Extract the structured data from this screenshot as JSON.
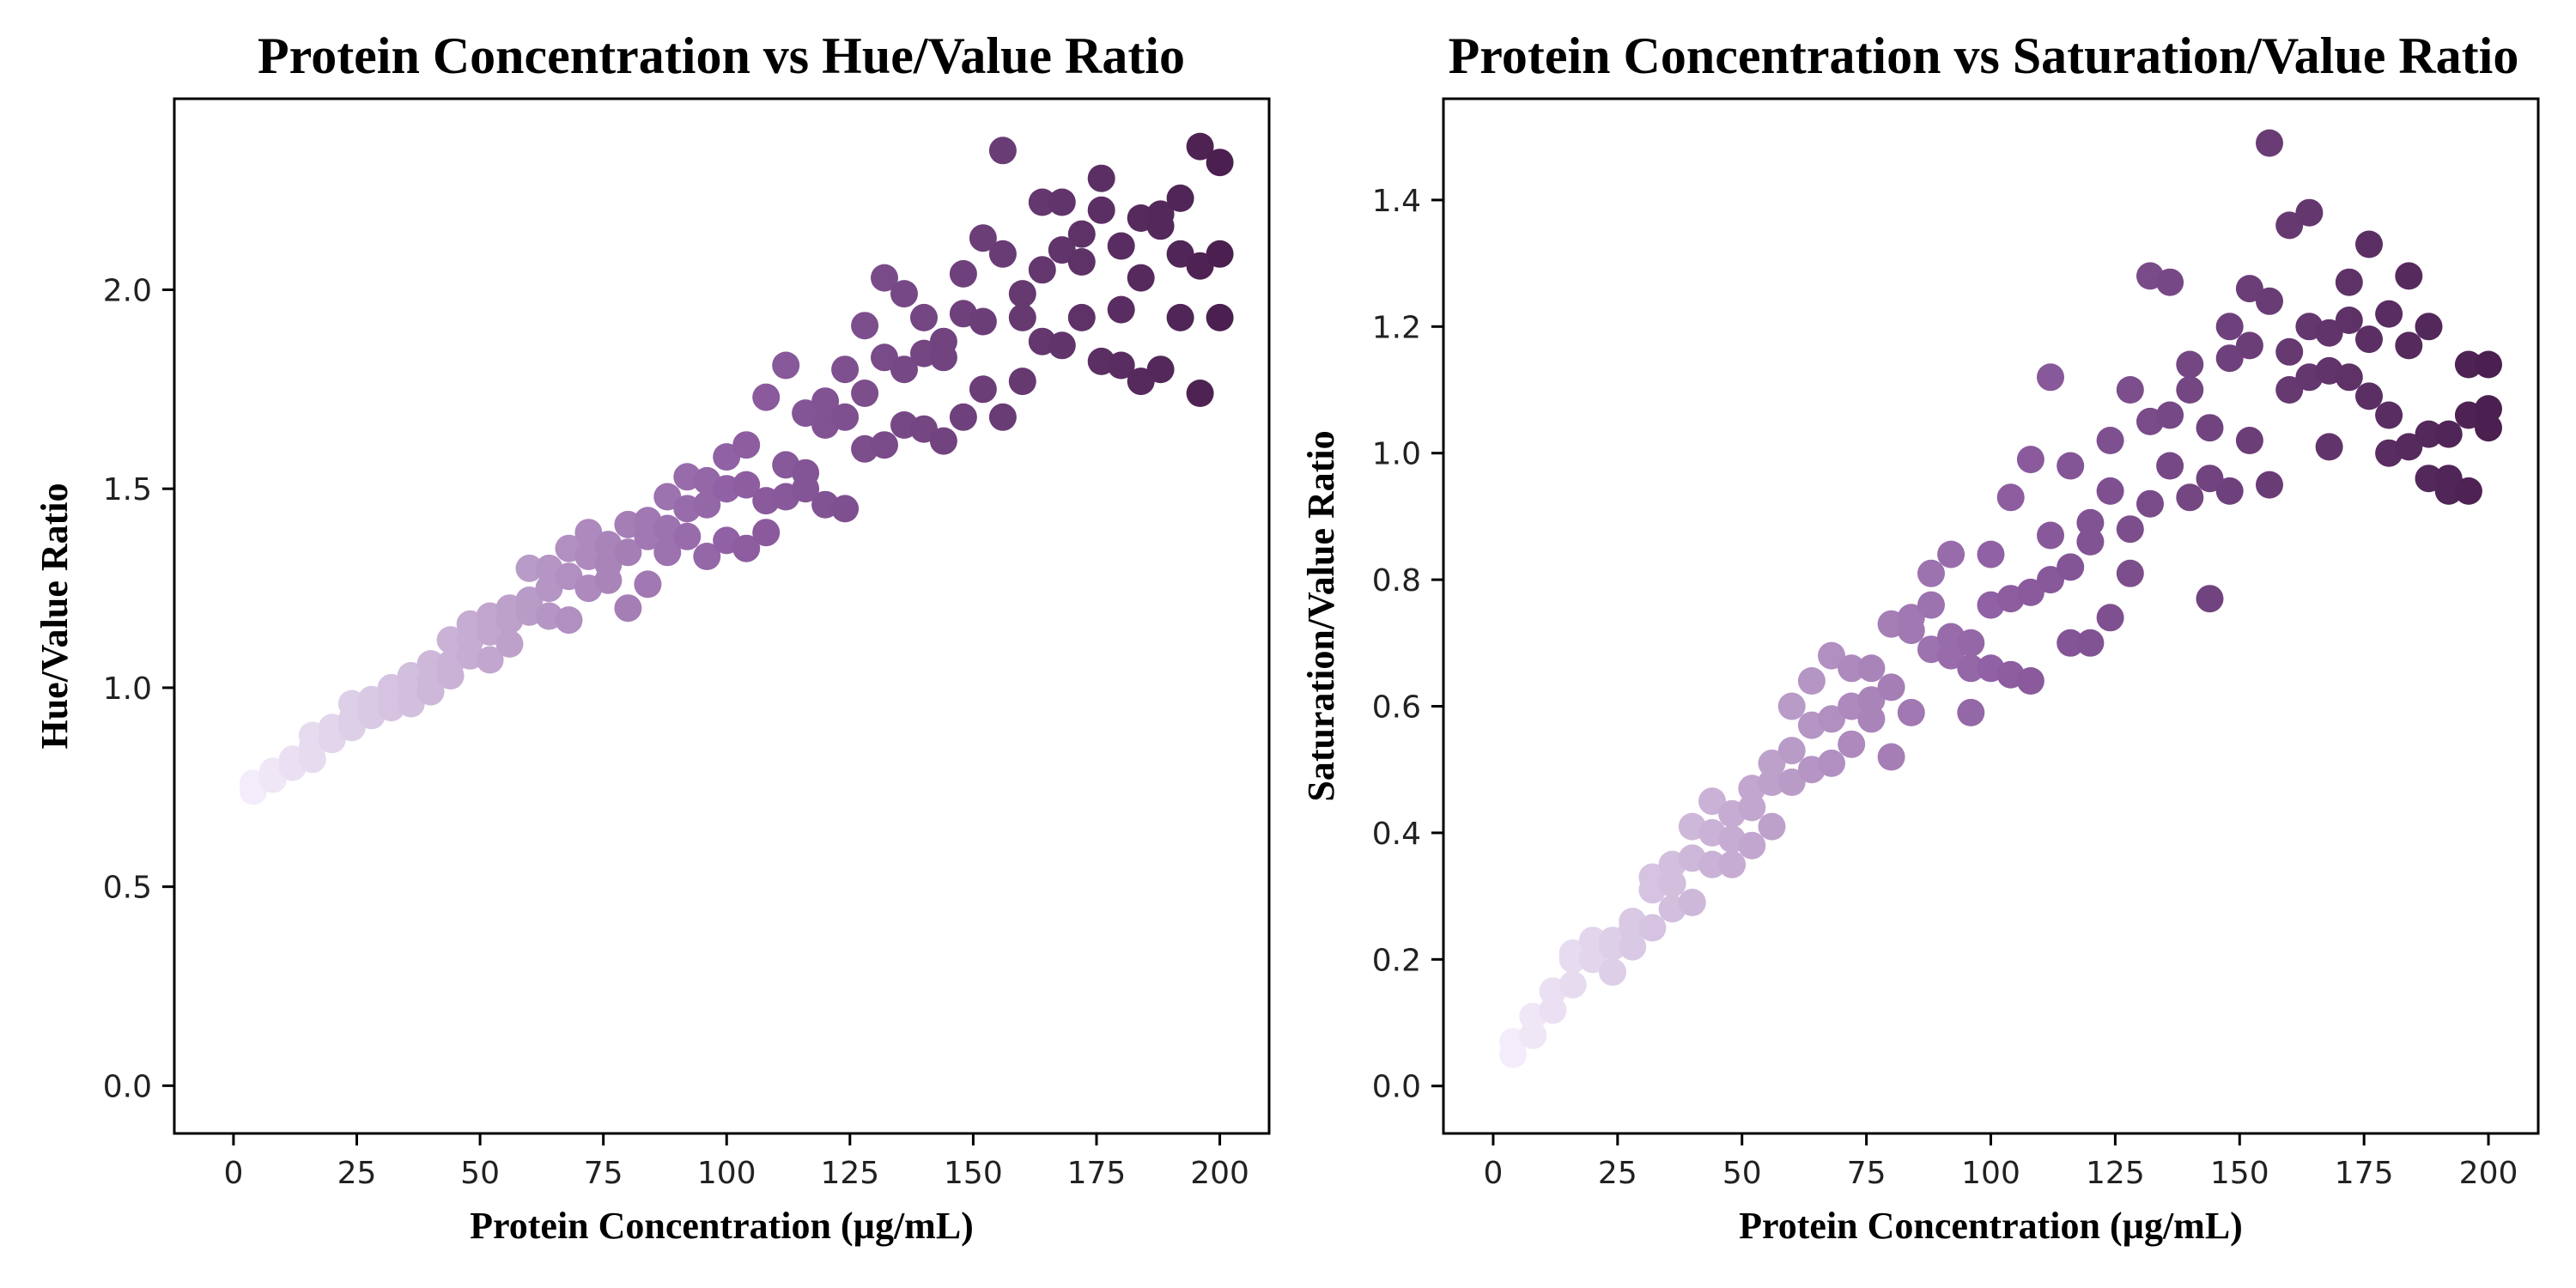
{
  "chart_data": [
    {
      "type": "scatter",
      "title": "Protein Concentration vs Hue/Value Ratio",
      "xlabel": "Protein Concentration (µg/mL)",
      "ylabel": "Hue/Value Ratio",
      "xlim": [
        -12,
        210
      ],
      "ylim": [
        -0.12,
        2.48
      ],
      "xticks": [
        0,
        25,
        50,
        75,
        100,
        125,
        150,
        175,
        200
      ],
      "xtick_labels": [
        "0",
        "25",
        "50",
        "75",
        "100",
        "125",
        "150",
        "175",
        "200"
      ],
      "yticks": [
        0.0,
        0.5,
        1.0,
        1.5,
        2.0
      ],
      "ytick_labels": [
        "0.0",
        "0.5",
        "1.0",
        "1.5",
        "2.0"
      ],
      "grid": false,
      "colormap": {
        "low": "#f3ecfa",
        "mid": "#8e5ea2",
        "high": "#4b2050"
      },
      "color_by": "x",
      "x": [
        4,
        4,
        8,
        8,
        12,
        12,
        16,
        16,
        16,
        20,
        20,
        24,
        24,
        24,
        28,
        28,
        28,
        32,
        32,
        32,
        36,
        36,
        36,
        40,
        40,
        40,
        44,
        44,
        44,
        48,
        48,
        48,
        52,
        52,
        52,
        56,
        56,
        56,
        60,
        60,
        60,
        64,
        64,
        64,
        68,
        68,
        68,
        72,
        72,
        72,
        76,
        76,
        76,
        80,
        80,
        80,
        84,
        84,
        84,
        88,
        88,
        88,
        92,
        92,
        92,
        96,
        96,
        96,
        100,
        100,
        100,
        104,
        104,
        104,
        108,
        108,
        108,
        112,
        112,
        112,
        116,
        116,
        116,
        120,
        120,
        120,
        124,
        124,
        124,
        128,
        128,
        128,
        132,
        132,
        132,
        136,
        136,
        136,
        140,
        140,
        140,
        144,
        144,
        144,
        148,
        148,
        148,
        152,
        152,
        152,
        156,
        156,
        156,
        160,
        160,
        160,
        164,
        164,
        164,
        168,
        168,
        168,
        172,
        172,
        172,
        176,
        176,
        176,
        180,
        180,
        180,
        184,
        184,
        184,
        188,
        188,
        188,
        192,
        192,
        192,
        196,
        196,
        196,
        200,
        200,
        200
      ],
      "y": [
        0.74,
        0.76,
        0.77,
        0.79,
        0.8,
        0.82,
        0.82,
        0.85,
        0.88,
        0.87,
        0.9,
        0.9,
        0.92,
        0.96,
        0.93,
        0.95,
        0.97,
        0.95,
        0.97,
        1.0,
        0.96,
        1.0,
        1.03,
        0.99,
        1.02,
        1.06,
        1.03,
        1.06,
        1.12,
        1.08,
        1.12,
        1.16,
        1.07,
        1.14,
        1.18,
        1.11,
        1.17,
        1.2,
        1.19,
        1.22,
        1.3,
        1.18,
        1.25,
        1.3,
        1.17,
        1.28,
        1.35,
        1.25,
        1.33,
        1.39,
        1.27,
        1.31,
        1.36,
        1.2,
        1.34,
        1.41,
        1.26,
        1.38,
        1.42,
        1.34,
        1.4,
        1.48,
        1.38,
        1.45,
        1.53,
        1.33,
        1.46,
        1.52,
        1.37,
        1.5,
        1.58,
        1.35,
        1.51,
        1.61,
        1.39,
        1.47,
        1.73,
        1.48,
        1.56,
        1.81,
        1.5,
        1.54,
        1.69,
        1.46,
        1.66,
        1.72,
        1.45,
        1.68,
        1.8,
        1.6,
        1.74,
        1.91,
        1.61,
        1.83,
        2.03,
        1.66,
        1.8,
        1.99,
        1.65,
        1.84,
        1.93,
        1.62,
        1.83,
        1.87,
        1.68,
        1.94,
        2.04,
        1.75,
        1.92,
        2.13,
        1.68,
        2.09,
        2.35,
        1.77,
        1.93,
        1.99,
        1.87,
        2.05,
        2.22,
        1.86,
        2.1,
        2.22,
        1.93,
        2.07,
        2.14,
        1.82,
        2.2,
        2.28,
        1.81,
        1.95,
        2.11,
        1.77,
        2.03,
        2.18,
        1.8,
        2.16,
        2.19,
        1.93,
        2.09,
        2.23,
        1.74,
        2.06,
        2.36,
        1.93,
        2.09,
        2.32
      ]
    },
    {
      "type": "scatter",
      "title": "Protein Concentration vs Saturation/Value Ratio",
      "xlabel": "Protein Concentration (µg/mL)",
      "ylabel": "Saturation/Value Ratio",
      "xlim": [
        -10,
        210
      ],
      "ylim": [
        -0.075,
        1.56
      ],
      "xticks": [
        0,
        25,
        50,
        75,
        100,
        125,
        150,
        175,
        200
      ],
      "xtick_labels": [
        "0",
        "25",
        "50",
        "75",
        "100",
        "125",
        "150",
        "175",
        "200"
      ],
      "yticks": [
        0.0,
        0.2,
        0.4,
        0.6,
        0.8,
        1.0,
        1.2,
        1.4
      ],
      "ytick_labels": [
        "0.0",
        "0.2",
        "0.4",
        "0.6",
        "0.8",
        "1.0",
        "1.2",
        "1.4"
      ],
      "grid": false,
      "colormap": {
        "low": "#f3ecfa",
        "mid": "#8e5ea2",
        "high": "#4b2050"
      },
      "color_by": "x",
      "x": [
        4,
        4,
        8,
        8,
        12,
        12,
        16,
        16,
        16,
        20,
        20,
        24,
        24,
        24,
        28,
        28,
        28,
        32,
        32,
        32,
        36,
        36,
        36,
        40,
        40,
        40,
        44,
        44,
        44,
        48,
        48,
        48,
        52,
        52,
        52,
        56,
        56,
        56,
        60,
        60,
        60,
        64,
        64,
        64,
        68,
        68,
        68,
        72,
        72,
        72,
        76,
        76,
        76,
        80,
        80,
        80,
        84,
        84,
        84,
        88,
        88,
        88,
        92,
        92,
        92,
        96,
        96,
        96,
        100,
        100,
        100,
        104,
        104,
        104,
        108,
        108,
        108,
        112,
        112,
        112,
        116,
        116,
        116,
        120,
        120,
        120,
        124,
        124,
        124,
        128,
        128,
        128,
        132,
        132,
        132,
        136,
        136,
        136,
        140,
        140,
        140,
        144,
        144,
        144,
        148,
        148,
        148,
        152,
        152,
        152,
        156,
        156,
        156,
        160,
        160,
        160,
        164,
        164,
        164,
        168,
        168,
        168,
        172,
        172,
        172,
        176,
        176,
        176,
        180,
        180,
        180,
        184,
        184,
        184,
        188,
        188,
        188,
        192,
        192,
        192,
        196,
        196,
        196,
        200,
        200,
        200
      ],
      "y": [
        0.05,
        0.07,
        0.08,
        0.11,
        0.12,
        0.15,
        0.16,
        0.2,
        0.21,
        0.2,
        0.23,
        0.18,
        0.22,
        0.23,
        0.22,
        0.26,
        0.25,
        0.25,
        0.31,
        0.33,
        0.28,
        0.32,
        0.35,
        0.29,
        0.36,
        0.41,
        0.35,
        0.4,
        0.45,
        0.35,
        0.39,
        0.43,
        0.38,
        0.44,
        0.47,
        0.41,
        0.48,
        0.51,
        0.48,
        0.53,
        0.6,
        0.5,
        0.57,
        0.64,
        0.51,
        0.58,
        0.68,
        0.54,
        0.6,
        0.66,
        0.58,
        0.61,
        0.66,
        0.52,
        0.63,
        0.73,
        0.59,
        0.72,
        0.74,
        0.69,
        0.76,
        0.81,
        0.68,
        0.71,
        0.84,
        0.59,
        0.66,
        0.7,
        0.66,
        0.76,
        0.84,
        0.65,
        0.77,
        0.93,
        0.64,
        0.78,
        0.99,
        0.8,
        0.87,
        1.12,
        0.7,
        0.82,
        0.98,
        0.7,
        0.86,
        0.89,
        0.74,
        0.94,
        1.02,
        0.81,
        0.88,
        1.1,
        0.92,
        1.05,
        1.28,
        0.98,
        1.06,
        1.27,
        0.93,
        1.1,
        1.14,
        0.77,
        0.96,
        1.04,
        0.94,
        1.15,
        1.2,
        1.02,
        1.17,
        1.26,
        0.95,
        1.24,
        1.49,
        1.1,
        1.16,
        1.36,
        1.12,
        1.2,
        1.38,
        1.01,
        1.13,
        1.19,
        1.12,
        1.21,
        1.27,
        1.09,
        1.18,
        1.33,
        1.0,
        1.06,
        1.22,
        1.01,
        1.17,
        1.28,
        0.96,
        1.03,
        1.2,
        0.94,
        1.03,
        0.96,
        0.94,
        1.06,
        1.14,
        1.04,
        1.07,
        1.14
      ]
    }
  ]
}
